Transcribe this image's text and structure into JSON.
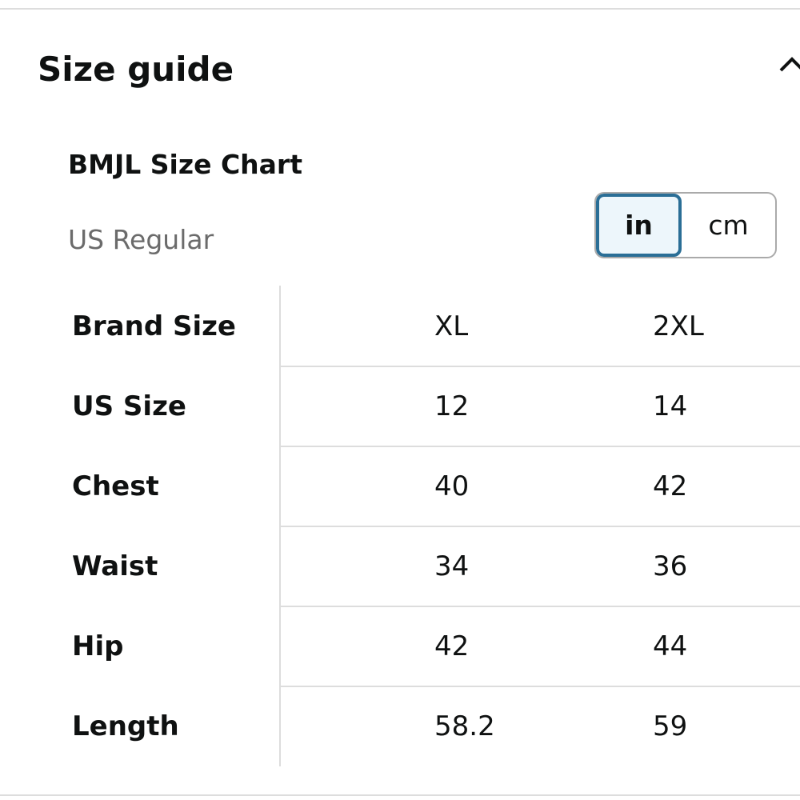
{
  "header": {
    "title": "Size guide"
  },
  "chart_title": "BMJL Size Chart",
  "region": "US Regular",
  "units": {
    "options": [
      "in",
      "cm"
    ],
    "selected": 0
  },
  "table": {
    "rows": [
      [
        "Brand Size",
        "XL",
        "2XL"
      ],
      [
        "US Size",
        "12",
        "14"
      ],
      [
        "Chest",
        "40",
        "42"
      ],
      [
        "Waist",
        "34",
        "36"
      ],
      [
        "Hip",
        "42",
        "44"
      ],
      [
        "Length",
        "58.2",
        "59"
      ]
    ]
  }
}
